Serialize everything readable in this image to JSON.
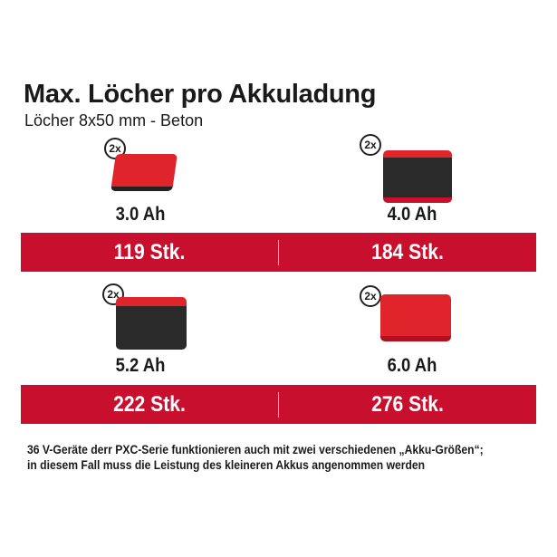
{
  "title": "Max. Löcher pro Akkuladung",
  "subtitle": "Löcher 8x50 mm - Beton",
  "batteries": [
    {
      "quantity": "2x",
      "capacity": "3.0 Ah",
      "holes": "119 Stk.",
      "body_color": "#e0242b"
    },
    {
      "quantity": "2x",
      "capacity": "4.0 Ah",
      "holes": "184 Stk.",
      "body_color": "#2a2a2a"
    },
    {
      "quantity": "2x",
      "capacity": "5.2 Ah",
      "holes": "222 Stk.",
      "body_color": "#2a2a2a"
    },
    {
      "quantity": "2x",
      "capacity": "6.0 Ah",
      "holes": "276 Stk.",
      "body_color": "#e0242b"
    }
  ],
  "note": [
    "36 V-Geräte derr PXC-Serie funktionieren auch mit zwei verschiedenen „Akku-Größen“;",
    "in diesem Fall muss die Leistung des kleineren Akkus angenommen werden"
  ],
  "colors": {
    "band": "#c8102e",
    "text": "#1a1a1a"
  }
}
